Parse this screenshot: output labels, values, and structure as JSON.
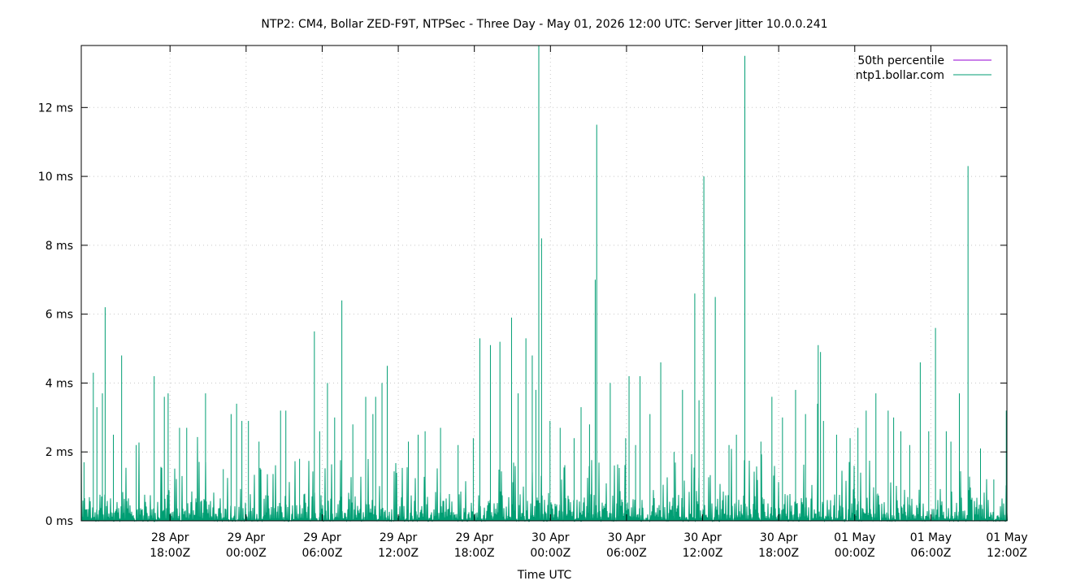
{
  "chart_data": {
    "type": "line",
    "title": "NTP2: CM4, Bollar ZED-F9T, NTPSec - Three Day - May 01, 2026 12:00 UTC: Server Jitter 10.0.0.241",
    "xlabel": "Time UTC",
    "ylabel": "",
    "x_range": [
      "2026-04-28 11:00Z",
      "2026-05-01 12:00Z"
    ],
    "y_range": [
      0,
      13.8
    ],
    "y_unit": "ms",
    "y_ticks": [
      {
        "value": 0,
        "label": "0 ms"
      },
      {
        "value": 2,
        "label": "2 ms"
      },
      {
        "value": 4,
        "label": "4 ms"
      },
      {
        "value": 6,
        "label": "6 ms"
      },
      {
        "value": 8,
        "label": "8 ms"
      },
      {
        "value": 10,
        "label": "10 ms"
      },
      {
        "value": 12,
        "label": "12 ms"
      }
    ],
    "x_ticks": [
      {
        "value": "2026-04-28 18:00Z",
        "line1": "28 Apr",
        "line2": "18:00Z"
      },
      {
        "value": "2026-04-29 00:00Z",
        "line1": "29 Apr",
        "line2": "00:00Z"
      },
      {
        "value": "2026-04-29 06:00Z",
        "line1": "29 Apr",
        "line2": "06:00Z"
      },
      {
        "value": "2026-04-29 12:00Z",
        "line1": "29 Apr",
        "line2": "12:00Z"
      },
      {
        "value": "2026-04-29 18:00Z",
        "line1": "29 Apr",
        "line2": "18:00Z"
      },
      {
        "value": "2026-04-30 00:00Z",
        "line1": "30 Apr",
        "line2": "00:00Z"
      },
      {
        "value": "2026-04-30 06:00Z",
        "line1": "30 Apr",
        "line2": "06:00Z"
      },
      {
        "value": "2026-04-30 12:00Z",
        "line1": "30 Apr",
        "line2": "12:00Z"
      },
      {
        "value": "2026-04-30 18:00Z",
        "line1": "30 Apr",
        "line2": "18:00Z"
      },
      {
        "value": "2026-05-01 00:00Z",
        "line1": "01 May",
        "line2": "00:00Z"
      },
      {
        "value": "2026-05-01 06:00Z",
        "line1": "01 May",
        "line2": "06:00Z"
      },
      {
        "value": "2026-05-01 12:00Z",
        "line1": "01 May",
        "line2": "12:00Z"
      }
    ],
    "grid": true,
    "legend_position": "top-right",
    "series": [
      {
        "name": "50th percentile",
        "color": "#9400d3",
        "points": []
      },
      {
        "name": "ntp1.bollar.com",
        "color": "#009e73",
        "baseline_max": 0.6,
        "points": [
          [
            "2026-04-28 11:13Z",
            1.7
          ],
          [
            "2026-04-28 11:57Z",
            4.3
          ],
          [
            "2026-04-28 12:14Z",
            3.3
          ],
          [
            "2026-04-28 12:40Z",
            3.7
          ],
          [
            "2026-04-28 12:53Z",
            6.2
          ],
          [
            "2026-04-28 13:32Z",
            2.5
          ],
          [
            "2026-04-28 14:11Z",
            4.8
          ],
          [
            "2026-04-28 15:20Z",
            2.2
          ],
          [
            "2026-04-28 16:45Z",
            4.2
          ],
          [
            "2026-04-28 17:33Z",
            3.6
          ],
          [
            "2026-04-28 17:51Z",
            3.7
          ],
          [
            "2026-04-28 18:45Z",
            2.7
          ],
          [
            "2026-04-28 19:19Z",
            2.7
          ],
          [
            "2026-04-28 20:48Z",
            3.7
          ],
          [
            "2026-04-28 22:12Z",
            1.5
          ],
          [
            "2026-04-28 22:49Z",
            3.1
          ],
          [
            "2026-04-28 23:15Z",
            3.4
          ],
          [
            "2026-04-28 23:40Z",
            2.9
          ],
          [
            "2026-04-29 00:11Z",
            2.9
          ],
          [
            "2026-04-29 01:01Z",
            2.3
          ],
          [
            "2026-04-29 02:43Z",
            3.2
          ],
          [
            "2026-04-29 03:08Z",
            3.2
          ],
          [
            "2026-04-29 04:13Z",
            1.8
          ],
          [
            "2026-04-29 05:23Z",
            5.5
          ],
          [
            "2026-04-29 05:48Z",
            2.6
          ],
          [
            "2026-04-29 06:25Z",
            4.0
          ],
          [
            "2026-04-29 06:59Z",
            3.0
          ],
          [
            "2026-04-29 07:33Z",
            6.4
          ],
          [
            "2026-04-29 08:25Z",
            2.8
          ],
          [
            "2026-04-29 09:26Z",
            3.6
          ],
          [
            "2026-04-29 10:00Z",
            3.1
          ],
          [
            "2026-04-29 10:13Z",
            3.6
          ],
          [
            "2026-04-29 10:43Z",
            4.0
          ],
          [
            "2026-04-29 11:08Z",
            4.5
          ],
          [
            "2026-04-29 12:48Z",
            2.3
          ],
          [
            "2026-04-29 13:34Z",
            2.5
          ],
          [
            "2026-04-29 14:07Z",
            2.6
          ],
          [
            "2026-04-29 15:20Z",
            2.7
          ],
          [
            "2026-04-29 16:43Z",
            2.2
          ],
          [
            "2026-04-29 17:55Z",
            2.4
          ],
          [
            "2026-04-29 18:26Z",
            5.3
          ],
          [
            "2026-04-29 19:16Z",
            5.1
          ],
          [
            "2026-04-29 20:01Z",
            5.2
          ],
          [
            "2026-04-29 20:56Z",
            5.9
          ],
          [
            "2026-04-29 21:27Z",
            3.7
          ],
          [
            "2026-04-29 22:04Z",
            5.3
          ],
          [
            "2026-04-29 22:34Z",
            4.8
          ],
          [
            "2026-04-29 22:51Z",
            3.8
          ],
          [
            "2026-04-29 23:05Z",
            13.8
          ],
          [
            "2026-04-29 23:18Z",
            8.2
          ],
          [
            "2026-04-29 23:58Z",
            2.9
          ],
          [
            "2026-04-30 00:46Z",
            2.7
          ],
          [
            "2026-04-30 01:52Z",
            2.4
          ],
          [
            "2026-04-30 02:25Z",
            3.3
          ],
          [
            "2026-04-30 03:05Z",
            2.8
          ],
          [
            "2026-04-30 03:32Z",
            7.0
          ],
          [
            "2026-04-30 03:39Z",
            11.5
          ],
          [
            "2026-04-30 04:43Z",
            4.0
          ],
          [
            "2026-04-30 05:56Z",
            2.4
          ],
          [
            "2026-04-30 06:12Z",
            4.2
          ],
          [
            "2026-04-30 06:43Z",
            2.2
          ],
          [
            "2026-04-30 07:04Z",
            4.2
          ],
          [
            "2026-04-30 07:51Z",
            3.1
          ],
          [
            "2026-04-30 08:42Z",
            4.6
          ],
          [
            "2026-04-30 09:45Z",
            2.0
          ],
          [
            "2026-04-30 10:25Z",
            3.8
          ],
          [
            "2026-04-30 11:23Z",
            6.6
          ],
          [
            "2026-04-30 11:43Z",
            3.5
          ],
          [
            "2026-04-30 12:06Z",
            10.0
          ],
          [
            "2026-04-30 13:00Z",
            6.5
          ],
          [
            "2026-04-30 14:05Z",
            2.2
          ],
          [
            "2026-04-30 14:40Z",
            2.5
          ],
          [
            "2026-04-30 15:20Z",
            13.5
          ],
          [
            "2026-04-30 16:36Z",
            2.3
          ],
          [
            "2026-04-30 17:28Z",
            3.6
          ],
          [
            "2026-04-30 18:18Z",
            3.0
          ],
          [
            "2026-04-30 19:20Z",
            3.8
          ],
          [
            "2026-04-30 20:07Z",
            3.1
          ],
          [
            "2026-04-30 21:04Z",
            3.4
          ],
          [
            "2026-04-30 21:07Z",
            5.1
          ],
          [
            "2026-04-30 21:18Z",
            4.9
          ],
          [
            "2026-04-30 21:32Z",
            2.9
          ],
          [
            "2026-04-30 22:34Z",
            2.5
          ],
          [
            "2026-04-30 23:38Z",
            2.4
          ],
          [
            "2026-05-01 00:15Z",
            2.7
          ],
          [
            "2026-05-01 00:54Z",
            3.2
          ],
          [
            "2026-05-01 01:40Z",
            3.7
          ],
          [
            "2026-05-01 02:38Z",
            3.2
          ],
          [
            "2026-05-01 03:04Z",
            3.0
          ],
          [
            "2026-05-01 03:38Z",
            2.6
          ],
          [
            "2026-05-01 04:20Z",
            2.2
          ],
          [
            "2026-05-01 05:10Z",
            4.6
          ],
          [
            "2026-05-01 05:50Z",
            2.6
          ],
          [
            "2026-05-01 06:22Z",
            5.6
          ],
          [
            "2026-05-01 07:13Z",
            2.6
          ],
          [
            "2026-05-01 07:35Z",
            2.3
          ],
          [
            "2026-05-01 08:15Z",
            3.7
          ],
          [
            "2026-05-01 08:56Z",
            10.3
          ],
          [
            "2026-05-01 09:55Z",
            2.1
          ],
          [
            "2026-05-01 10:58Z",
            1.2
          ],
          [
            "2026-05-01 11:57Z",
            3.2
          ]
        ]
      }
    ]
  }
}
